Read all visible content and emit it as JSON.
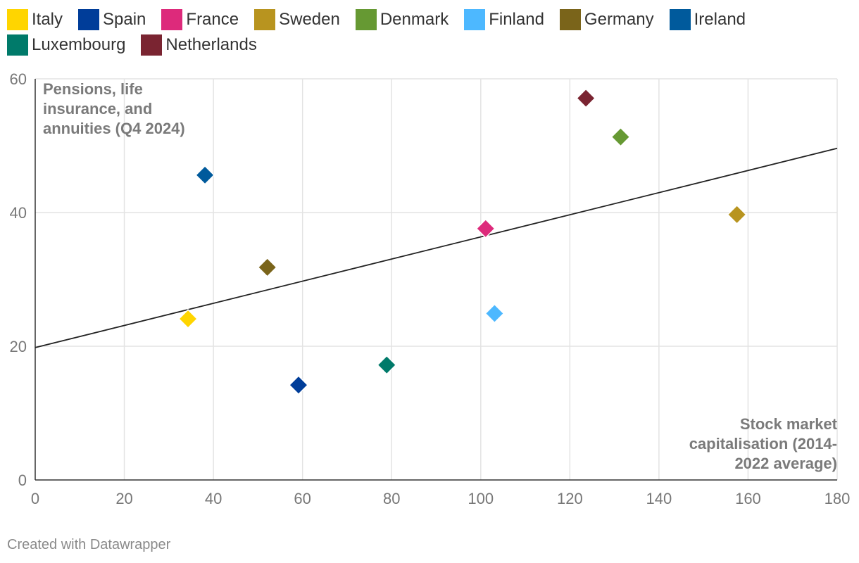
{
  "chart_data": {
    "type": "scatter",
    "x_axis": {
      "label_lines": [
        "Stock market",
        "capitalisation (2014-",
        "2022 average)"
      ],
      "range": [
        0,
        180
      ],
      "ticks": [
        0,
        20,
        40,
        60,
        80,
        100,
        120,
        140,
        160,
        180
      ],
      "tick_labels": [
        "0",
        "20",
        "40",
        "60",
        "80",
        "100",
        "120",
        "140",
        "160",
        "180"
      ]
    },
    "y_axis": {
      "label_lines": [
        "Pensions, life",
        "insurance, and",
        "annuities (Q4 2024)"
      ],
      "range": [
        0,
        60
      ],
      "ticks": [
        0,
        20,
        40,
        60
      ],
      "tick_labels": [
        "0",
        "20",
        "40",
        "60"
      ]
    },
    "grid": true,
    "legend_position": "top",
    "series": [
      {
        "name": "Italy",
        "color": "#ffd500",
        "x": 34.3,
        "y": 24.1
      },
      {
        "name": "Spain",
        "color": "#003d99",
        "x": 59.1,
        "y": 14.2
      },
      {
        "name": "France",
        "color": "#dd2a7b",
        "x": 101.1,
        "y": 37.6
      },
      {
        "name": "Sweden",
        "color": "#b8941f",
        "x": 157.5,
        "y": 39.7
      },
      {
        "name": "Denmark",
        "color": "#669933",
        "x": 131.4,
        "y": 51.3
      },
      {
        "name": "Finland",
        "color": "#4db8ff",
        "x": 103.1,
        "y": 24.9
      },
      {
        "name": "Germany",
        "color": "#7a641a",
        "x": 52.1,
        "y": 31.8
      },
      {
        "name": "Ireland",
        "color": "#005a9c",
        "x": 38.1,
        "y": 45.6
      },
      {
        "name": "Luxembourg",
        "color": "#007a6a",
        "x": 78.9,
        "y": 17.2
      },
      {
        "name": "Netherlands",
        "color": "#7a2431",
        "x": 123.6,
        "y": 57.1
      }
    ],
    "trendline": {
      "x": [
        0,
        180
      ],
      "y": [
        19.8,
        49.6
      ],
      "color": "#222222"
    }
  },
  "footer": {
    "credit": "Created with Datawrapper"
  }
}
